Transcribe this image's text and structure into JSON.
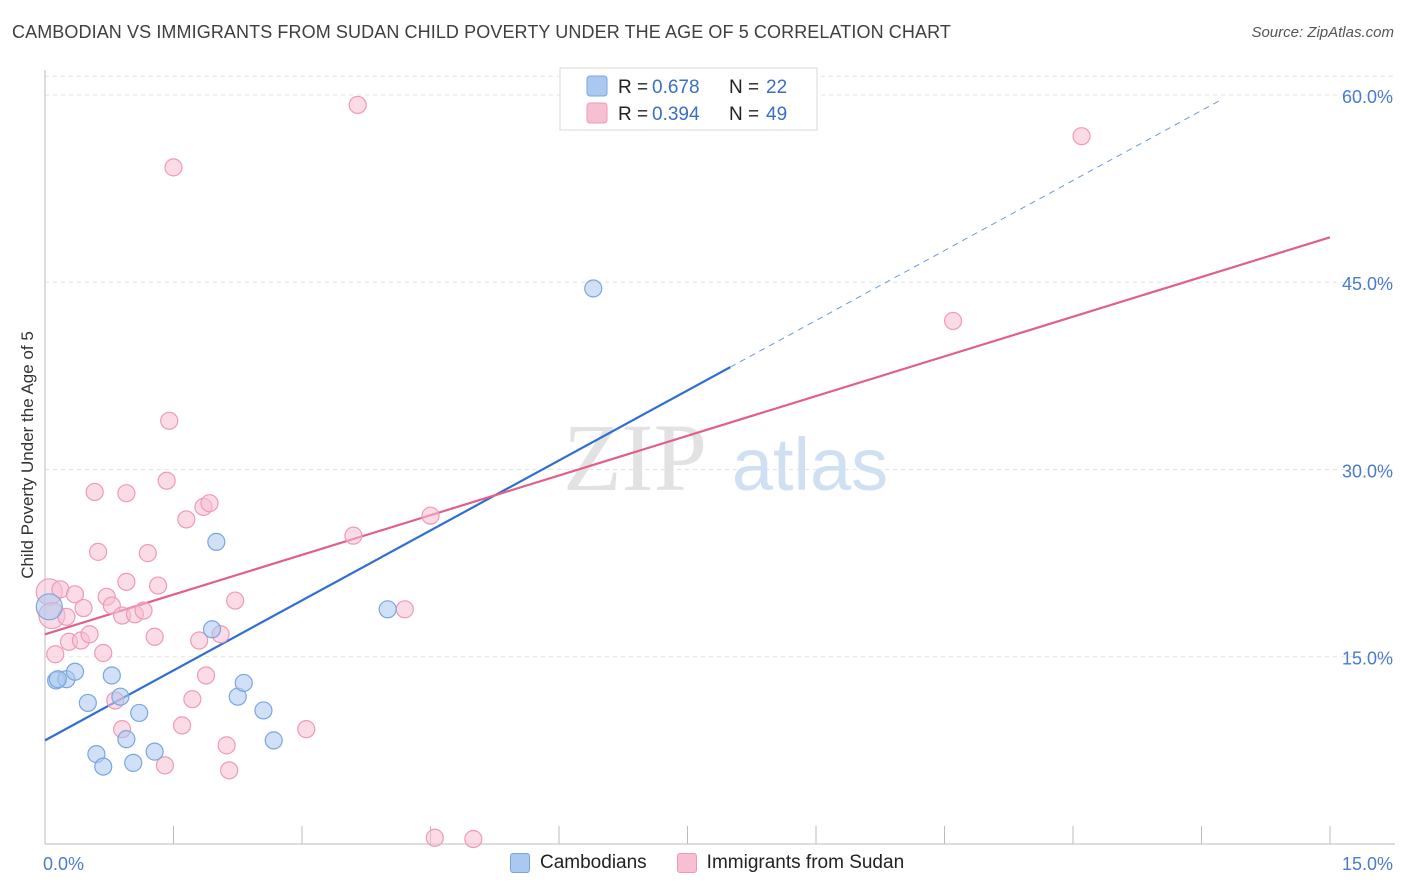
{
  "header": {
    "title": "CAMBODIAN VS IMMIGRANTS FROM SUDAN CHILD POVERTY UNDER THE AGE OF 5 CORRELATION CHART",
    "source": "Source: ZipAtlas.com"
  },
  "watermark": {
    "zip": "ZIP",
    "atlas": "atlas"
  },
  "legend": {
    "rows": [
      {
        "r_label": "R =",
        "r_value": "0.678",
        "n_label": "N =",
        "n_value": "22",
        "color": "#aac8f0",
        "stroke": "#7aa6e0"
      },
      {
        "r_label": "R =",
        "r_value": "0.394",
        "n_label": "N =",
        "n_value": "49",
        "color": "#f7c0d2",
        "stroke": "#ee9ab6"
      }
    ]
  },
  "bottom_legend": {
    "items": [
      {
        "label": "Cambodians",
        "color": "#aac8f0",
        "stroke": "#7aa6e0"
      },
      {
        "label": "Immigrants from Sudan",
        "color": "#f7c0d2",
        "stroke": "#ee9ab6"
      }
    ]
  },
  "chart_data": {
    "type": "scatter",
    "title": "CAMBODIAN VS IMMIGRANTS FROM SUDAN CHILD POVERTY UNDER THE AGE OF 5 CORRELATION CHART",
    "xlabel": "",
    "ylabel": "Child Poverty Under the Age of 5",
    "xlim": [
      0,
      15
    ],
    "ylim": [
      0,
      62
    ],
    "x_tick_labels": [
      {
        "value": 0,
        "label": "0.0%"
      },
      {
        "value": 15,
        "label": "15.0%"
      }
    ],
    "y_tick_labels": [
      {
        "value": 15,
        "label": "15.0%"
      },
      {
        "value": 30,
        "label": "30.0%"
      },
      {
        "value": 45,
        "label": "45.0%"
      },
      {
        "value": 60,
        "label": "60.0%"
      }
    ],
    "grid": true,
    "legend_position": "top-center",
    "series": [
      {
        "name": "Cambodians",
        "color": "#aac8f0",
        "stroke": "#7aa6e0",
        "line_color": "#2f6fd0",
        "trend": {
          "x0": 0,
          "y0": 8.3,
          "x1": 8.0,
          "y1": 38.2,
          "dashed_to_x": 13.7,
          "dashed_to_y": 59.5
        },
        "points": [
          [
            0.05,
            19.0
          ],
          [
            0.13,
            13.1
          ],
          [
            0.25,
            13.2
          ],
          [
            0.35,
            13.8
          ],
          [
            0.5,
            11.3
          ],
          [
            0.6,
            7.2
          ],
          [
            0.68,
            6.2
          ],
          [
            0.78,
            13.5
          ],
          [
            0.88,
            11.8
          ],
          [
            0.95,
            8.4
          ],
          [
            1.03,
            6.5
          ],
          [
            1.1,
            10.5
          ],
          [
            1.28,
            7.4
          ],
          [
            2.0,
            24.2
          ],
          [
            1.95,
            17.2
          ],
          [
            2.25,
            11.8
          ],
          [
            2.32,
            12.9
          ],
          [
            2.55,
            10.7
          ],
          [
            2.67,
            8.3
          ],
          [
            4.0,
            18.8
          ],
          [
            6.4,
            44.5
          ],
          [
            0.15,
            13.2
          ]
        ]
      },
      {
        "name": "Immigrants from Sudan",
        "color": "#f7c0d2",
        "stroke": "#ee9ab6",
        "line_color": "#e0608c",
        "trend": {
          "x0": 0,
          "y0": 16.8,
          "x1": 15.0,
          "y1": 48.6
        },
        "points": [
          [
            0.05,
            20.2
          ],
          [
            0.08,
            18.3
          ],
          [
            0.12,
            15.2
          ],
          [
            0.18,
            20.4
          ],
          [
            0.25,
            18.2
          ],
          [
            0.28,
            16.2
          ],
          [
            0.35,
            20.0
          ],
          [
            0.42,
            16.3
          ],
          [
            0.45,
            18.9
          ],
          [
            0.52,
            16.8
          ],
          [
            0.58,
            28.2
          ],
          [
            0.62,
            23.4
          ],
          [
            0.68,
            15.3
          ],
          [
            0.72,
            19.8
          ],
          [
            0.78,
            19.1
          ],
          [
            0.82,
            11.5
          ],
          [
            0.9,
            9.2
          ],
          [
            0.9,
            18.3
          ],
          [
            0.95,
            21.0
          ],
          [
            0.95,
            28.1
          ],
          [
            1.05,
            18.4
          ],
          [
            1.15,
            18.7
          ],
          [
            1.2,
            23.3
          ],
          [
            1.28,
            16.6
          ],
          [
            1.32,
            20.7
          ],
          [
            1.4,
            6.3
          ],
          [
            1.42,
            29.1
          ],
          [
            1.45,
            33.9
          ],
          [
            1.5,
            54.2
          ],
          [
            1.6,
            9.5
          ],
          [
            1.65,
            26.0
          ],
          [
            1.72,
            11.6
          ],
          [
            1.8,
            16.3
          ],
          [
            1.85,
            27.0
          ],
          [
            1.88,
            13.5
          ],
          [
            1.92,
            27.3
          ],
          [
            2.05,
            16.8
          ],
          [
            2.12,
            7.9
          ],
          [
            2.15,
            5.9
          ],
          [
            2.22,
            19.5
          ],
          [
            3.05,
            9.2
          ],
          [
            3.6,
            24.7
          ],
          [
            3.65,
            59.2
          ],
          [
            4.2,
            18.8
          ],
          [
            4.5,
            26.3
          ],
          [
            4.55,
            0.5
          ],
          [
            5.0,
            0.4
          ],
          [
            10.6,
            41.9
          ],
          [
            12.1,
            56.7
          ]
        ]
      }
    ]
  }
}
